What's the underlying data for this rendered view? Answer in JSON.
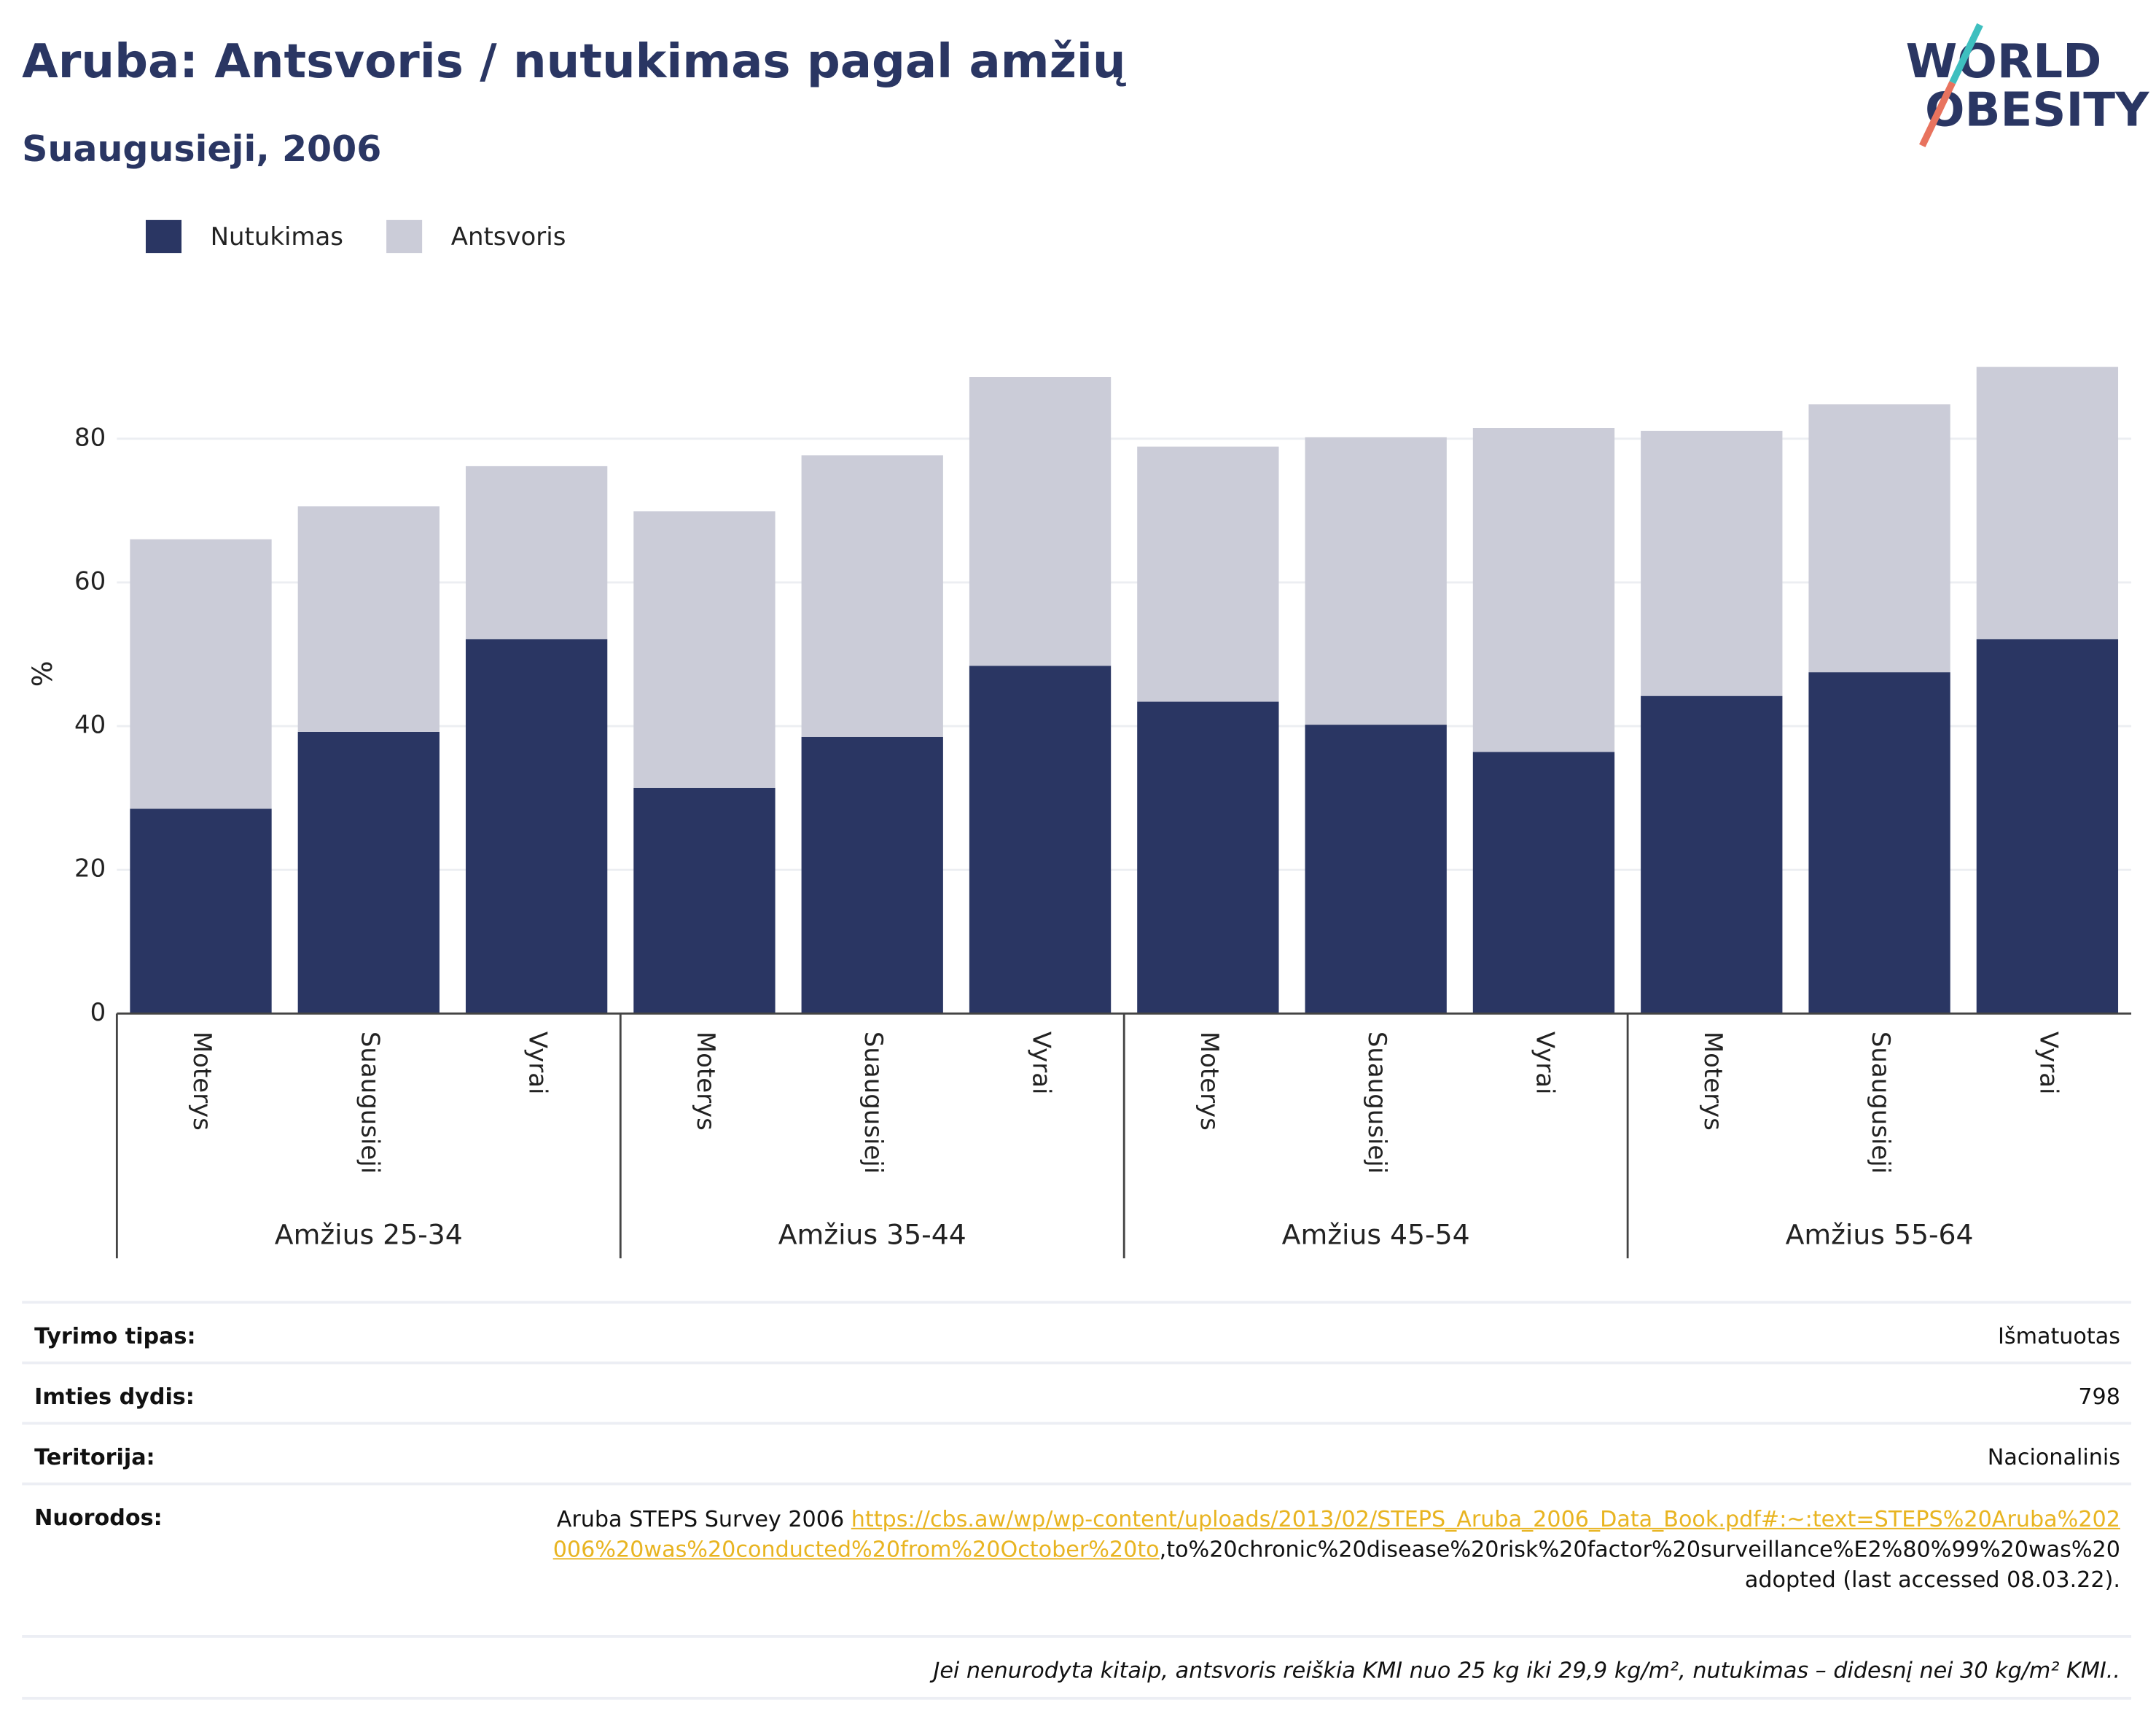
{
  "chart_data": {
    "type": "stacked-bar",
    "title": "Aruba: Antsvoris / nutukimas pagal amžių",
    "subtitle": "Suaugusieji, 2006",
    "y_label": "%",
    "groups": [
      "Amžius 25-34",
      "Amžius 35-44",
      "Amžius 45-54",
      "Amžius 55-64"
    ],
    "categories": [
      "Moterys",
      "Suaugusieji",
      "Vyrai",
      "Moterys",
      "Suaugusieji",
      "Vyrai",
      "Moterys",
      "Suaugusieji",
      "Vyrai",
      "Moterys",
      "Suaugusieji",
      "Vyrai"
    ],
    "series": [
      {
        "name": "Nutukimas",
        "color": "#2a3663",
        "values": [
          28.5,
          39.2,
          52.1,
          31.4,
          38.5,
          48.4,
          43.4,
          40.2,
          36.4,
          44.2,
          47.5,
          52.1
        ]
      },
      {
        "name": "Antsvoris",
        "color": "#cbccd8",
        "values": [
          37.5,
          31.4,
          24.1,
          38.5,
          39.2,
          40.2,
          35.5,
          40.0,
          45.1,
          36.9,
          37.3,
          37.9
        ]
      }
    ],
    "ylim": [
      0,
      95
    ],
    "yticks": [
      0,
      20,
      40,
      60,
      80
    ],
    "grid": true
  },
  "logo": {
    "line1": "WORLD",
    "line2": "OBESITY"
  },
  "info": {
    "rows": [
      {
        "label": "Tyrimo tipas:",
        "value": "Išmatuotas"
      },
      {
        "label": "Imties dydis:",
        "value": "798"
      },
      {
        "label": "Teritorija:",
        "value": "Nacionalinis"
      }
    ],
    "references": {
      "label": "Nuorodos:",
      "before": "Aruba STEPS Survey 2006 ",
      "link": "https://cbs.aw/wp/wp-content/uploads/2013/02/STEPS_Aruba_2006_Data_Book.pdf#:~:text=STEPS%20Aruba%202006%20was%20conducted%20from%20October%20to",
      "after": ",to%20chronic%20disease%20risk%20factor%20surveillance%E2%80%99%20was%20adopted (last accessed 08.03.22)."
    },
    "footnote": "Jei nenurodyta kitaip, antsvoris reiškia KMI nuo 25 kg iki 29,9 kg/m², nutukimas – didesnį nei 30 kg/m² KMI.."
  }
}
